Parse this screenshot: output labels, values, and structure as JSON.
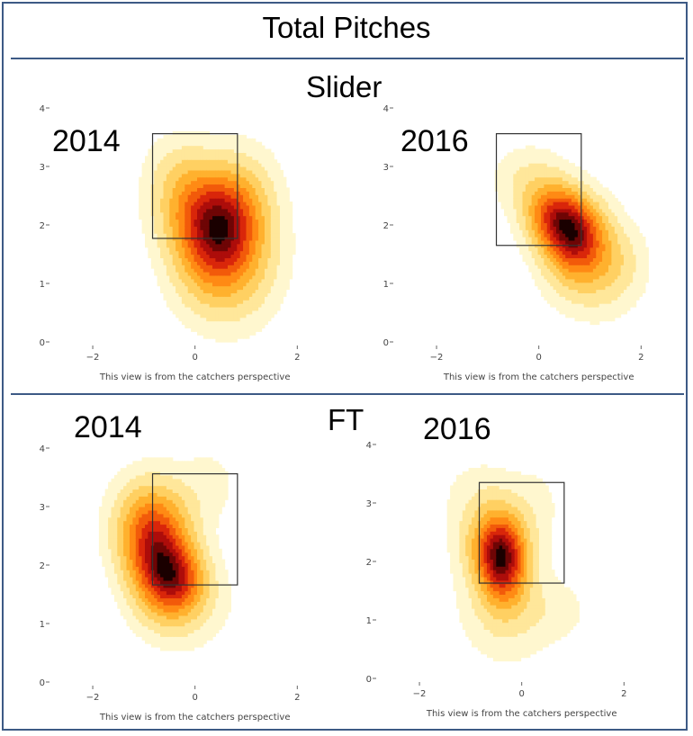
{
  "title": "Total Pitches",
  "sections": {
    "slider": "Slider",
    "ft": "FT"
  },
  "colors": {
    "border": "#3d5a85",
    "levels": [
      "#fff7cf",
      "#ffe79a",
      "#ffd062",
      "#ffb12e",
      "#ff8a14",
      "#f25a0a",
      "#d9260a",
      "#ad0d0a",
      "#6e0505",
      "#1a0000"
    ]
  },
  "chart_data": [
    {
      "type": "heatmap",
      "pitch": "Slider",
      "label": "2014",
      "caption": "This view is from the catchers perspective",
      "xlim": [
        -2.3,
        2.1
      ],
      "ylim": [
        0,
        4
      ],
      "xticks": [
        -2,
        0,
        2
      ],
      "yticks": [
        0,
        1,
        2,
        3,
        4
      ],
      "strike_zone": {
        "x": [
          -0.83,
          0.83
        ],
        "y": [
          1.77,
          3.56
        ]
      },
      "hotspots": [
        {
          "x": 0.55,
          "y": 1.9,
          "sx": 0.52,
          "sy": 0.75,
          "r": -0.42,
          "w": 1.0
        },
        {
          "x": 0.05,
          "y": 2.25,
          "sx": 0.55,
          "sy": 0.55,
          "r": -0.3,
          "w": 0.6
        },
        {
          "x": 0.85,
          "y": 1.25,
          "sx": 0.6,
          "sy": 0.7,
          "r": -0.2,
          "w": 0.35
        },
        {
          "x": -0.35,
          "y": 2.95,
          "sx": 0.45,
          "sy": 0.45,
          "r": 0.0,
          "w": 0.18
        }
      ]
    },
    {
      "type": "heatmap",
      "pitch": "Slider",
      "label": "2016",
      "caption": "This view is from the catchers perspective",
      "xlim": [
        -2.3,
        2.1
      ],
      "ylim": [
        0,
        4
      ],
      "xticks": [
        -2,
        0,
        2
      ],
      "yticks": [
        0,
        1,
        2,
        3,
        4
      ],
      "strike_zone": {
        "x": [
          -0.83,
          0.83
        ],
        "y": [
          1.65,
          3.56
        ]
      },
      "hotspots": [
        {
          "x": 0.35,
          "y": 2.15,
          "sx": 0.42,
          "sy": 0.38,
          "r": -0.5,
          "w": 1.0
        },
        {
          "x": 0.75,
          "y": 1.75,
          "sx": 0.4,
          "sy": 0.45,
          "r": -0.3,
          "w": 0.85
        },
        {
          "x": 1.0,
          "y": 1.25,
          "sx": 0.6,
          "sy": 0.55,
          "r": -0.4,
          "w": 0.35
        },
        {
          "x": -0.2,
          "y": 2.8,
          "sx": 0.5,
          "sy": 0.4,
          "r": 0.0,
          "w": 0.22
        },
        {
          "x": 1.55,
          "y": 1.4,
          "sx": 0.4,
          "sy": 0.45,
          "r": 0.0,
          "w": 0.15
        }
      ]
    },
    {
      "type": "heatmap",
      "pitch": "FT",
      "label": "2014",
      "caption": "This view is from the catchers perspective",
      "xlim": [
        -2.3,
        2.1
      ],
      "ylim": [
        0,
        4
      ],
      "xticks": [
        -2,
        0,
        2
      ],
      "yticks": [
        0,
        1,
        2,
        3,
        4
      ],
      "strike_zone": {
        "x": [
          -0.83,
          0.83
        ],
        "y": [
          1.66,
          3.56
        ]
      },
      "hotspots": [
        {
          "x": -0.75,
          "y": 2.2,
          "sx": 0.45,
          "sy": 0.65,
          "r": 0.15,
          "w": 1.0
        },
        {
          "x": -0.35,
          "y": 1.75,
          "sx": 0.4,
          "sy": 0.4,
          "r": 0.0,
          "w": 0.65
        },
        {
          "x": -0.85,
          "y": 2.75,
          "sx": 0.55,
          "sy": 0.55,
          "r": 0.0,
          "w": 0.35
        },
        {
          "x": -0.15,
          "y": 1.3,
          "sx": 0.6,
          "sy": 0.5,
          "r": 0.0,
          "w": 0.2
        },
        {
          "x": 0.3,
          "y": 3.4,
          "sx": 0.45,
          "sy": 0.5,
          "r": 0.0,
          "w": 0.12
        }
      ]
    },
    {
      "type": "heatmap",
      "pitch": "FT",
      "label": "2016",
      "caption": "This view is from the catchers perspective",
      "xlim": [
        -2.3,
        2.1
      ],
      "ylim": [
        0,
        4
      ],
      "xticks": [
        -2,
        0,
        2
      ],
      "yticks": [
        0,
        1,
        2,
        3,
        4
      ],
      "strike_zone": {
        "x": [
          -0.83,
          0.83
        ],
        "y": [
          1.63,
          3.35
        ]
      },
      "hotspots": [
        {
          "x": -0.38,
          "y": 2.0,
          "sx": 0.32,
          "sy": 0.5,
          "r": 0.05,
          "w": 1.0
        },
        {
          "x": -0.55,
          "y": 2.35,
          "sx": 0.45,
          "sy": 0.45,
          "r": 0.0,
          "w": 0.45
        },
        {
          "x": -0.3,
          "y": 1.2,
          "sx": 0.65,
          "sy": 0.65,
          "r": 0.0,
          "w": 0.22
        },
        {
          "x": -0.85,
          "y": 3.2,
          "sx": 0.55,
          "sy": 0.45,
          "r": 0.0,
          "w": 0.12
        },
        {
          "x": 0.3,
          "y": 3.0,
          "sx": 0.4,
          "sy": 0.5,
          "r": 0.0,
          "w": 0.1
        },
        {
          "x": 0.75,
          "y": 1.15,
          "sx": 0.45,
          "sy": 0.35,
          "r": 0.0,
          "w": 0.1
        }
      ]
    }
  ]
}
